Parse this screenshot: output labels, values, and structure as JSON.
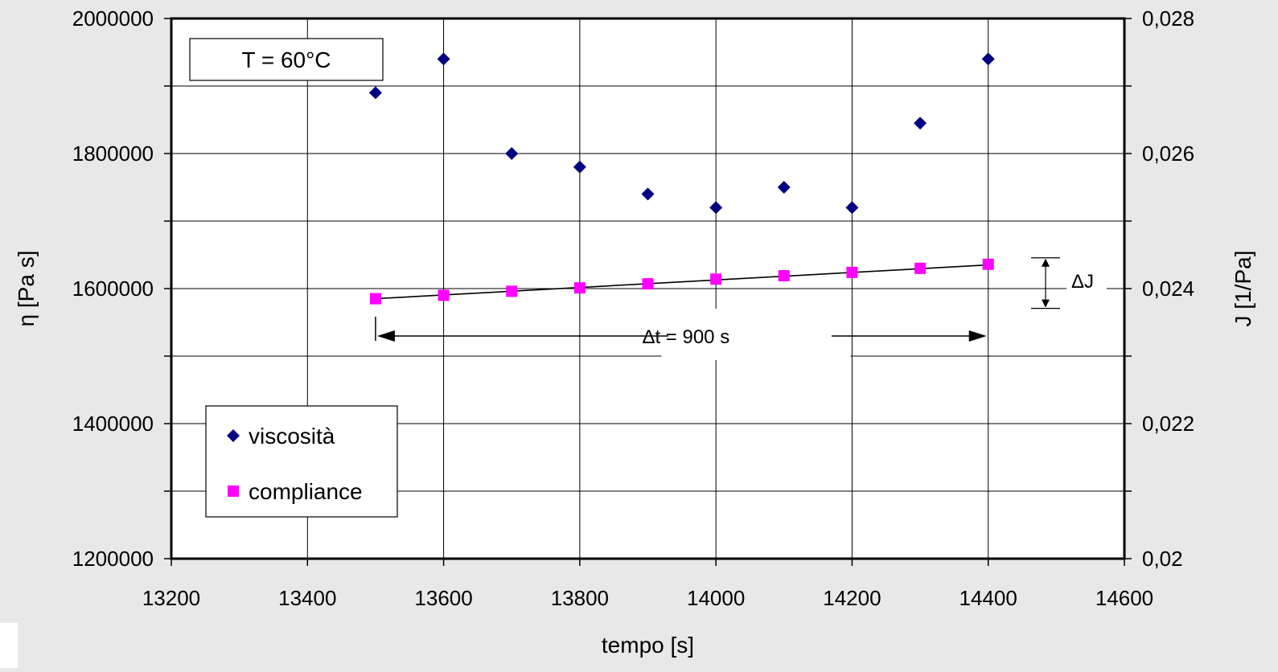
{
  "chart_data": {
    "type": "scatter",
    "title": "",
    "xlabel": "tempo [s]",
    "ylabel_left": "η [Pa s]",
    "ylabel_right": "J [1/Pa]",
    "xlim": [
      13200,
      14600
    ],
    "ylim_left": [
      1200000,
      2000000
    ],
    "ylim_right": [
      0.02,
      0.028
    ],
    "x_ticks": [
      "13200",
      "13400",
      "13600",
      "13800",
      "14000",
      "14200",
      "14400",
      "14600"
    ],
    "y_left_ticks": [
      "1200000",
      "1400000",
      "1600000",
      "1800000",
      "2000000"
    ],
    "y_right_ticks": [
      "0,02",
      "0,022",
      "0,024",
      "0,026",
      "0,028"
    ],
    "grid": true,
    "legend_position": "bottom-left",
    "series": [
      {
        "name": "viscosità",
        "axis": "left",
        "marker": "diamond",
        "color": "#000080",
        "x": [
          13500,
          13600,
          13700,
          13800,
          13900,
          14000,
          14100,
          14200,
          14300,
          14400
        ],
        "y": [
          1890000,
          1940000,
          1800000,
          1780000,
          1740000,
          1720000,
          1750000,
          1720000,
          1845000,
          1940000
        ]
      },
      {
        "name": "compliance",
        "axis": "right",
        "marker": "square",
        "color": "#ff00ff",
        "x": [
          13500,
          13600,
          13700,
          13800,
          13900,
          14000,
          14100,
          14200,
          14300,
          14400
        ],
        "y": [
          0.02385,
          0.0239,
          0.02396,
          0.02401,
          0.02407,
          0.02414,
          0.02419,
          0.02424,
          0.0243,
          0.02436
        ]
      }
    ],
    "trendline": {
      "series": "compliance",
      "x": [
        13500,
        14400
      ],
      "y": [
        0.02385,
        0.02435
      ]
    },
    "annotations": {
      "temperature": "T = 60°C",
      "delta_t": "Δt = 900 s",
      "delta_j": "ΔJ"
    }
  }
}
